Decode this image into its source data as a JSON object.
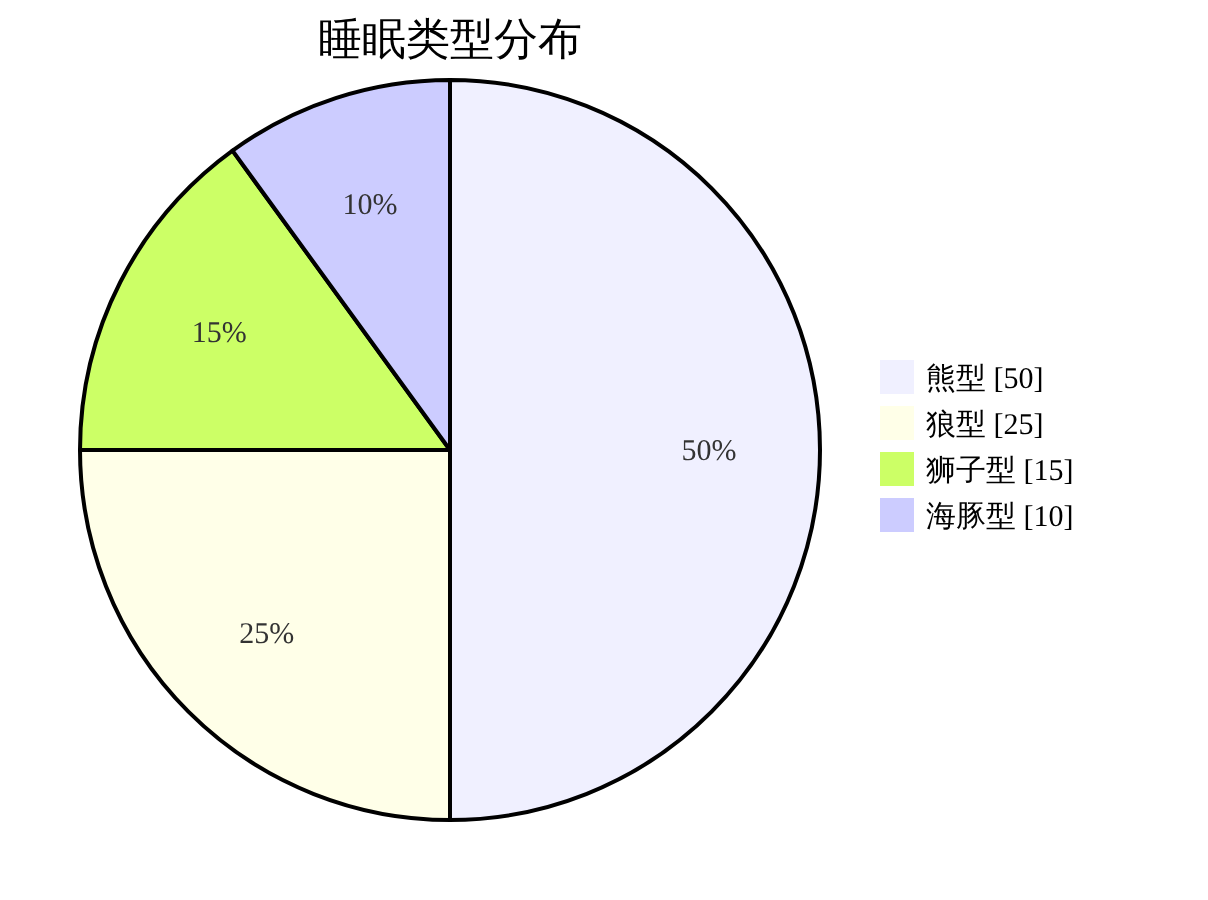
{
  "chart_data": {
    "type": "pie",
    "title": "睡眠类型分布",
    "categories": [
      "熊型 [50]",
      "狼型 [25]",
      "狮子型 [15]",
      "海豚型 [10]"
    ],
    "values": [
      50,
      25,
      15,
      10
    ],
    "colors": [
      "#f0f0ff",
      "#ffffe8",
      "#ccff66",
      "#ccccff"
    ],
    "value_labels": [
      "50%",
      "25%",
      "15%",
      "10%"
    ],
    "legend": "right"
  }
}
